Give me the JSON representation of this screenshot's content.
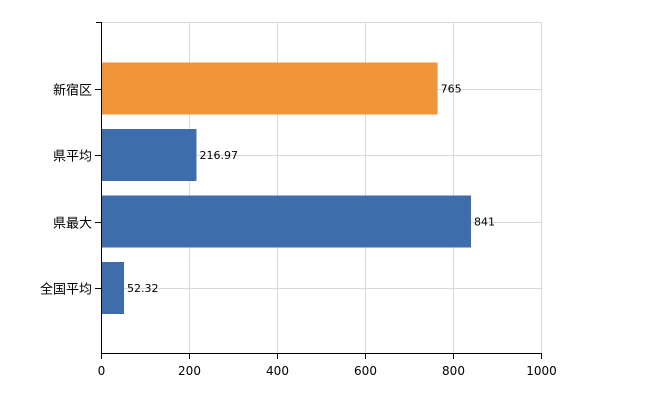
{
  "chart_data": {
    "type": "bar",
    "orientation": "horizontal",
    "categories": [
      "新宿区",
      "県平均",
      "県最大",
      "全国平均"
    ],
    "values": [
      765,
      216.97,
      841,
      52.32
    ],
    "value_labels": [
      "765",
      "216.97",
      "841",
      "52.32"
    ],
    "bar_colors": [
      "#f0943a",
      "#3d6eab",
      "#3d6eab",
      "#3d6eab"
    ],
    "x_ticks": [
      0,
      200,
      400,
      600,
      800,
      1000
    ],
    "x_tick_labels": [
      "0",
      "200",
      "400",
      "600",
      "800",
      "1000"
    ],
    "xlim": [
      0,
      1000
    ],
    "title": "",
    "xlabel": "",
    "ylabel": "",
    "grid": true,
    "legend": "none"
  }
}
